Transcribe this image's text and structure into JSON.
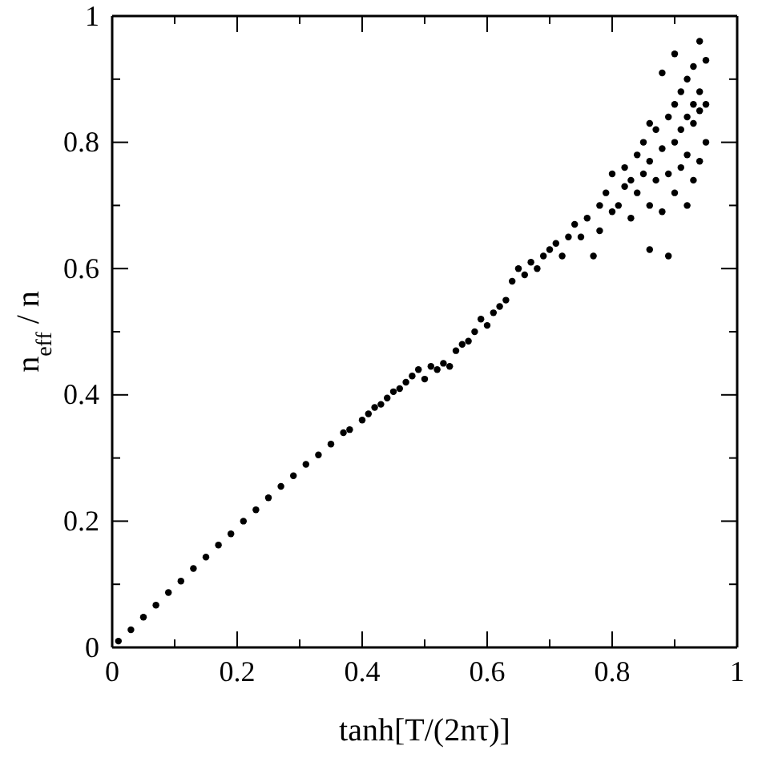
{
  "chart_data": {
    "type": "scatter",
    "xlabel": "tanh[T/(2nτ)]",
    "ylabel": "n$_{eff}$ / n",
    "marker": "circle",
    "grid": false,
    "xlim": [
      0,
      1
    ],
    "ylim": [
      0,
      1
    ],
    "xticks": [
      0,
      {
        "value": 0.1,
        "label": null
      },
      0.2,
      {
        "value": 0.3,
        "label": null
      },
      0.4,
      {
        "value": 0.5,
        "label": null
      },
      0.6,
      {
        "value": 0.7,
        "label": null
      },
      0.8,
      {
        "value": 0.9,
        "label": null
      },
      1
    ],
    "yticks": [
      0,
      {
        "value": 0.1,
        "label": null
      },
      0.2,
      {
        "value": 0.3,
        "label": null
      },
      0.4,
      {
        "value": 0.5,
        "label": null
      },
      0.6,
      {
        "value": 0.7,
        "label": null
      },
      0.8,
      {
        "value": 0.9,
        "label": null
      },
      1
    ],
    "series": [
      {
        "color": "#000000",
        "x": [
          0.01,
          0.03,
          0.05,
          0.07,
          0.09,
          0.11,
          0.13,
          0.15,
          0.17,
          0.19,
          0.21,
          0.23,
          0.25,
          0.27,
          0.29,
          0.31,
          0.33,
          0.35,
          0.37,
          0.38,
          0.4,
          0.41,
          0.42,
          0.43,
          0.44,
          0.45,
          0.46,
          0.47,
          0.48,
          0.49,
          0.5,
          0.51,
          0.52,
          0.53,
          0.54,
          0.55,
          0.56,
          0.57,
          0.58,
          0.59,
          0.6,
          0.61,
          0.62,
          0.63,
          0.64,
          0.65,
          0.66,
          0.67,
          0.68,
          0.69,
          0.7,
          0.71,
          0.72,
          0.73,
          0.74,
          0.75,
          0.76,
          0.77,
          0.78,
          0.78,
          0.79,
          0.8,
          0.8,
          0.81,
          0.82,
          0.82,
          0.83,
          0.83,
          0.84,
          0.84,
          0.85,
          0.85,
          0.86,
          0.86,
          0.87,
          0.87,
          0.88,
          0.88,
          0.89,
          0.89,
          0.89,
          0.9,
          0.9,
          0.9,
          0.91,
          0.91,
          0.91,
          0.92,
          0.92,
          0.92,
          0.93,
          0.93,
          0.93,
          0.93,
          0.94,
          0.94,
          0.94,
          0.94,
          0.95,
          0.95,
          0.95,
          0.92,
          0.86,
          0.86,
          0.88,
          0.9
        ],
        "values": [
          0.01,
          0.028,
          0.048,
          0.067,
          0.087,
          0.105,
          0.125,
          0.143,
          0.162,
          0.18,
          0.2,
          0.218,
          0.237,
          0.255,
          0.272,
          0.29,
          0.305,
          0.322,
          0.34,
          0.345,
          0.36,
          0.37,
          0.38,
          0.385,
          0.395,
          0.405,
          0.41,
          0.42,
          0.43,
          0.44,
          0.425,
          0.445,
          0.44,
          0.45,
          0.445,
          0.47,
          0.48,
          0.485,
          0.5,
          0.52,
          0.51,
          0.53,
          0.54,
          0.55,
          0.58,
          0.6,
          0.59,
          0.61,
          0.6,
          0.62,
          0.63,
          0.64,
          0.62,
          0.65,
          0.67,
          0.65,
          0.68,
          0.62,
          0.7,
          0.66,
          0.72,
          0.69,
          0.75,
          0.7,
          0.73,
          0.76,
          0.74,
          0.68,
          0.78,
          0.72,
          0.75,
          0.8,
          0.7,
          0.77,
          0.82,
          0.74,
          0.79,
          0.69,
          0.84,
          0.75,
          0.62,
          0.8,
          0.86,
          0.72,
          0.82,
          0.88,
          0.76,
          0.84,
          0.9,
          0.78,
          0.86,
          0.92,
          0.74,
          0.83,
          0.88,
          0.96,
          0.77,
          0.85,
          0.93,
          0.86,
          0.8,
          0.7,
          0.63,
          0.83,
          0.91,
          0.94
        ]
      }
    ]
  }
}
